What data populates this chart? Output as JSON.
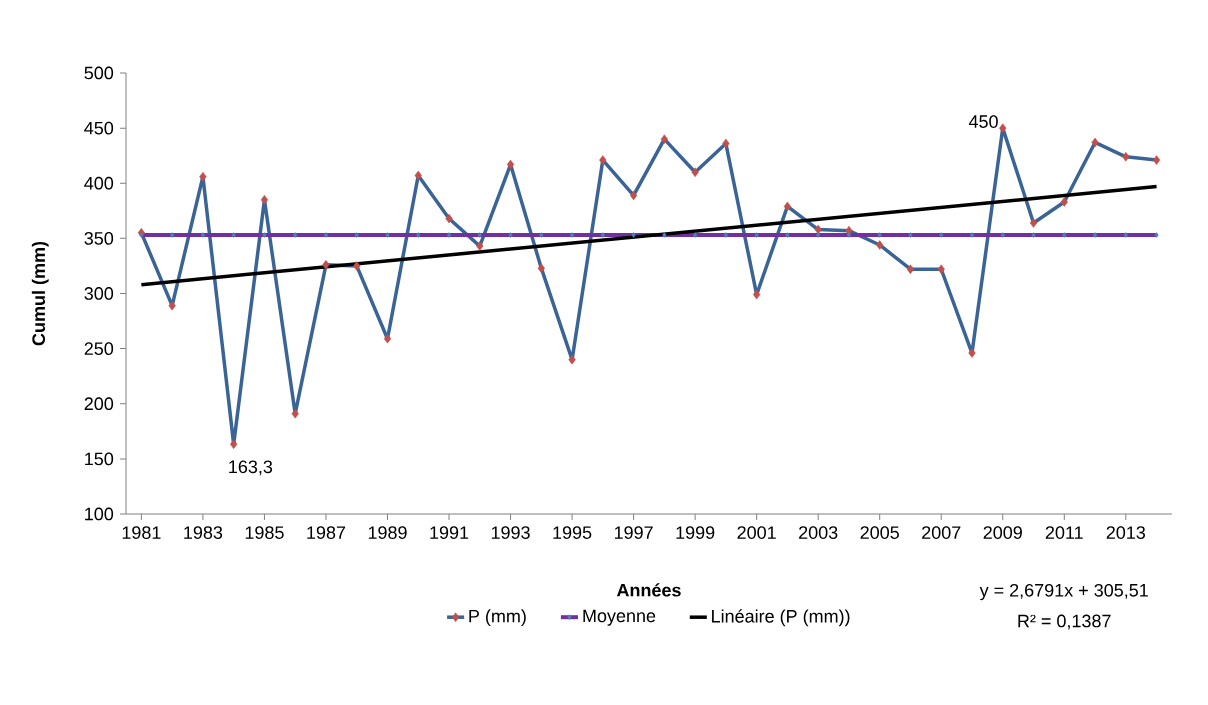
{
  "chart_data": {
    "type": "line",
    "xlabel": "Années",
    "ylabel": "Cumul (mm)",
    "x": [
      1981,
      1982,
      1983,
      1984,
      1985,
      1986,
      1987,
      1988,
      1989,
      1990,
      1991,
      1992,
      1993,
      1994,
      1995,
      1996,
      1997,
      1998,
      1999,
      2000,
      2001,
      2002,
      2003,
      2004,
      2005,
      2006,
      2007,
      2008,
      2009,
      2010,
      2011,
      2012,
      2013,
      2014
    ],
    "xlim": [
      1980.5,
      2014.5
    ],
    "xticks": [
      1981,
      1983,
      1985,
      1987,
      1989,
      1991,
      1993,
      1995,
      1997,
      1999,
      2001,
      2003,
      2005,
      2007,
      2009,
      2011,
      2013
    ],
    "ylim": [
      100,
      500
    ],
    "yticks": [
      100,
      150,
      200,
      250,
      300,
      350,
      400,
      450,
      500
    ],
    "grid": false,
    "legend": "bottom",
    "series": [
      {
        "name": "P (mm)",
        "color": "#3a6496",
        "marker": "diamond",
        "values": [
          355,
          289,
          406,
          163.3,
          385,
          191,
          326,
          325,
          259,
          407,
          368,
          343,
          417,
          323,
          240,
          421,
          389,
          440,
          410,
          436,
          299,
          379,
          358,
          357,
          344,
          322,
          322,
          246,
          450,
          364,
          383,
          437,
          424,
          421
        ]
      },
      {
        "name": "Moyenne",
        "color": "#7030a0",
        "marker": "diamond",
        "values": [
          353,
          353,
          353,
          353,
          353,
          353,
          353,
          353,
          353,
          353,
          353,
          353,
          353,
          353,
          353,
          353,
          353,
          353,
          353,
          353,
          353,
          353,
          353,
          353,
          353,
          353,
          353,
          353,
          353,
          353,
          353,
          353,
          353,
          353
        ]
      },
      {
        "name": "Linéaire (P (mm))",
        "type": "line",
        "color": "#000000",
        "x": [
          1981,
          2014
        ],
        "values": [
          308,
          397
        ]
      }
    ],
    "annotations": [
      {
        "text": "163,3",
        "x": 1984,
        "y": 163.3
      },
      {
        "text": "450",
        "x": 2009,
        "y": 450
      },
      "y = 2,6791x + 305,51",
      "R² = 0,1387"
    ]
  }
}
